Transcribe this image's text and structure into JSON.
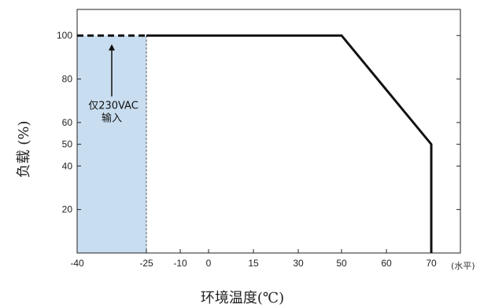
{
  "chart_data": {
    "type": "line",
    "xlabel": "环境温度(℃)",
    "ylabel": "负载 (%)",
    "x_unit_note": "(水平)",
    "xlim": [
      -40,
      75
    ],
    "ylim": [
      0,
      112
    ],
    "x_ticks": [
      {
        "value": -40,
        "label": "-40"
      },
      {
        "value": -25,
        "label": "-25"
      },
      {
        "value": -10,
        "label": "-10"
      },
      {
        "value": 0,
        "label": "0"
      },
      {
        "value": 15,
        "label": "15"
      },
      {
        "value": 30,
        "label": "30"
      },
      {
        "value": 50,
        "label": "50"
      },
      {
        "value": 60,
        "label": "60"
      },
      {
        "value": 70,
        "label": "70"
      }
    ],
    "y_ticks": [
      20,
      40,
      50,
      60,
      80,
      100
    ],
    "series": [
      {
        "style": "solid",
        "points": [
          [
            -25,
            100
          ],
          [
            50,
            100
          ],
          [
            70,
            50
          ],
          [
            70,
            0
          ]
        ]
      },
      {
        "style": "dashed",
        "points": [
          [
            -40,
            100
          ],
          [
            -25,
            100
          ]
        ]
      }
    ],
    "shaded_region": {
      "x": [
        -40,
        -25
      ],
      "y": [
        0,
        100
      ],
      "color": "#c9ddf0"
    },
    "annotation": {
      "line1": "仅230VAC",
      "line2": "输入",
      "arrow_from": [
        -32.5,
        72
      ],
      "arrow_to": [
        -32.5,
        96
      ]
    },
    "colors": {
      "line": "#111111",
      "shade": "#c9ddf0",
      "shade_edge": "#555555"
    }
  }
}
